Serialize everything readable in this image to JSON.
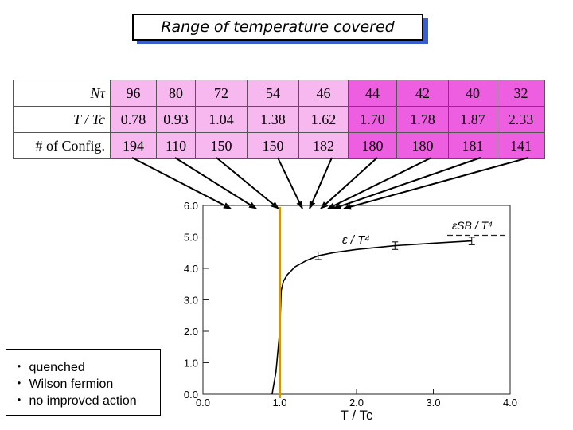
{
  "title": "Range of  temperature covered",
  "table": {
    "row_labels": {
      "ntau": "Nτ",
      "t_tc": "T / Tc",
      "configs": "# of Config."
    },
    "ntau": [
      "96",
      "80",
      "72",
      "54",
      "46",
      "44",
      "42",
      "40",
      "32"
    ],
    "t_tc": [
      "0.78",
      "0.93",
      "1.04",
      "1.38",
      "1.62",
      "1.70",
      "1.78",
      "1.87",
      "2.33"
    ],
    "configs": [
      "194",
      "110",
      "150",
      "150",
      "182",
      "180",
      "180",
      "181",
      "141"
    ]
  },
  "notes": [
    "・ quenched",
    "・ Wilson fermion",
    "・ no improved action"
  ],
  "colors": {
    "light_cell": "#f7b8ef",
    "dark_cell": "#ee5ee0",
    "title_shadow": "#3a5fcd",
    "vertical_line": "#c8961e"
  },
  "chart_data": {
    "type": "line",
    "title": "",
    "xlabel": "T / Tc",
    "ylabel": "",
    "xlim": [
      0.0,
      4.0
    ],
    "ylim": [
      0.0,
      6.0
    ],
    "xticks": [
      "0.0",
      "1.0",
      "2.0",
      "3.0",
      "4.0"
    ],
    "yticks": [
      "0.0",
      "1.0",
      "2.0",
      "3.0",
      "4.0",
      "5.0",
      "6.0"
    ],
    "series_label": "ε / T⁴",
    "reference_label": "εSB / T⁴",
    "reference_value": 5.05,
    "vertical_line_x": 1.0,
    "series": [
      {
        "name": "ε / T⁴",
        "x": [
          0.9,
          0.95,
          1.0,
          1.02,
          1.05,
          1.1,
          1.2,
          1.35,
          1.5,
          1.7,
          2.0,
          2.5,
          3.0,
          3.5
        ],
        "y": [
          0.0,
          0.7,
          2.0,
          3.3,
          3.6,
          3.8,
          4.05,
          4.25,
          4.4,
          4.5,
          4.6,
          4.72,
          4.8,
          4.87
        ]
      }
    ],
    "errorbars": [
      {
        "x": 1.5,
        "y": 4.4,
        "err": 0.12
      },
      {
        "x": 2.5,
        "y": 4.72,
        "err": 0.12
      },
      {
        "x": 3.5,
        "y": 4.87,
        "err": 0.12
      }
    ]
  }
}
